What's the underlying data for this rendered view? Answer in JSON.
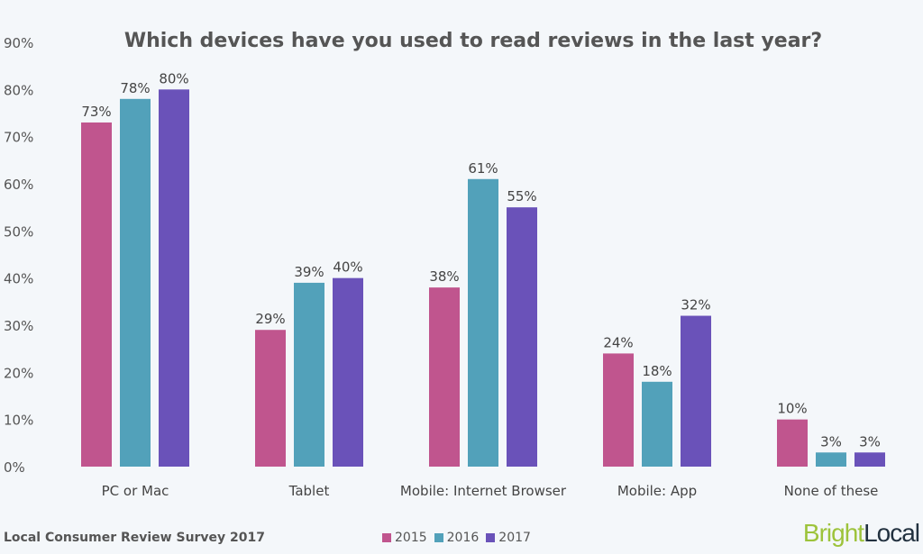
{
  "chart_data": {
    "type": "bar",
    "title": "Which devices have you used to read reviews in the last year?",
    "categories": [
      "PC or Mac",
      "Tablet",
      "Mobile: Internet Browser",
      "Mobile: App",
      "None of these"
    ],
    "series": [
      {
        "name": "2015",
        "color": "#c0558e",
        "values": [
          73,
          29,
          38,
          24,
          10
        ]
      },
      {
        "name": "2016",
        "color": "#52a1ba",
        "values": [
          78,
          39,
          61,
          18,
          3
        ]
      },
      {
        "name": "2017",
        "color": "#6a52b9",
        "values": [
          80,
          40,
          55,
          32,
          3
        ]
      }
    ],
    "ylim": [
      0,
      90
    ],
    "yticks": [
      "0%",
      "10%",
      "20%",
      "30%",
      "40%",
      "50%",
      "60%",
      "70%",
      "80%",
      "90%"
    ],
    "value_suffix": "%",
    "grid": false,
    "legend_position": "bottom"
  },
  "footer": {
    "source": "Local Consumer Review Survey 2017",
    "logo_part1": "Bright",
    "logo_part2": "Local"
  }
}
